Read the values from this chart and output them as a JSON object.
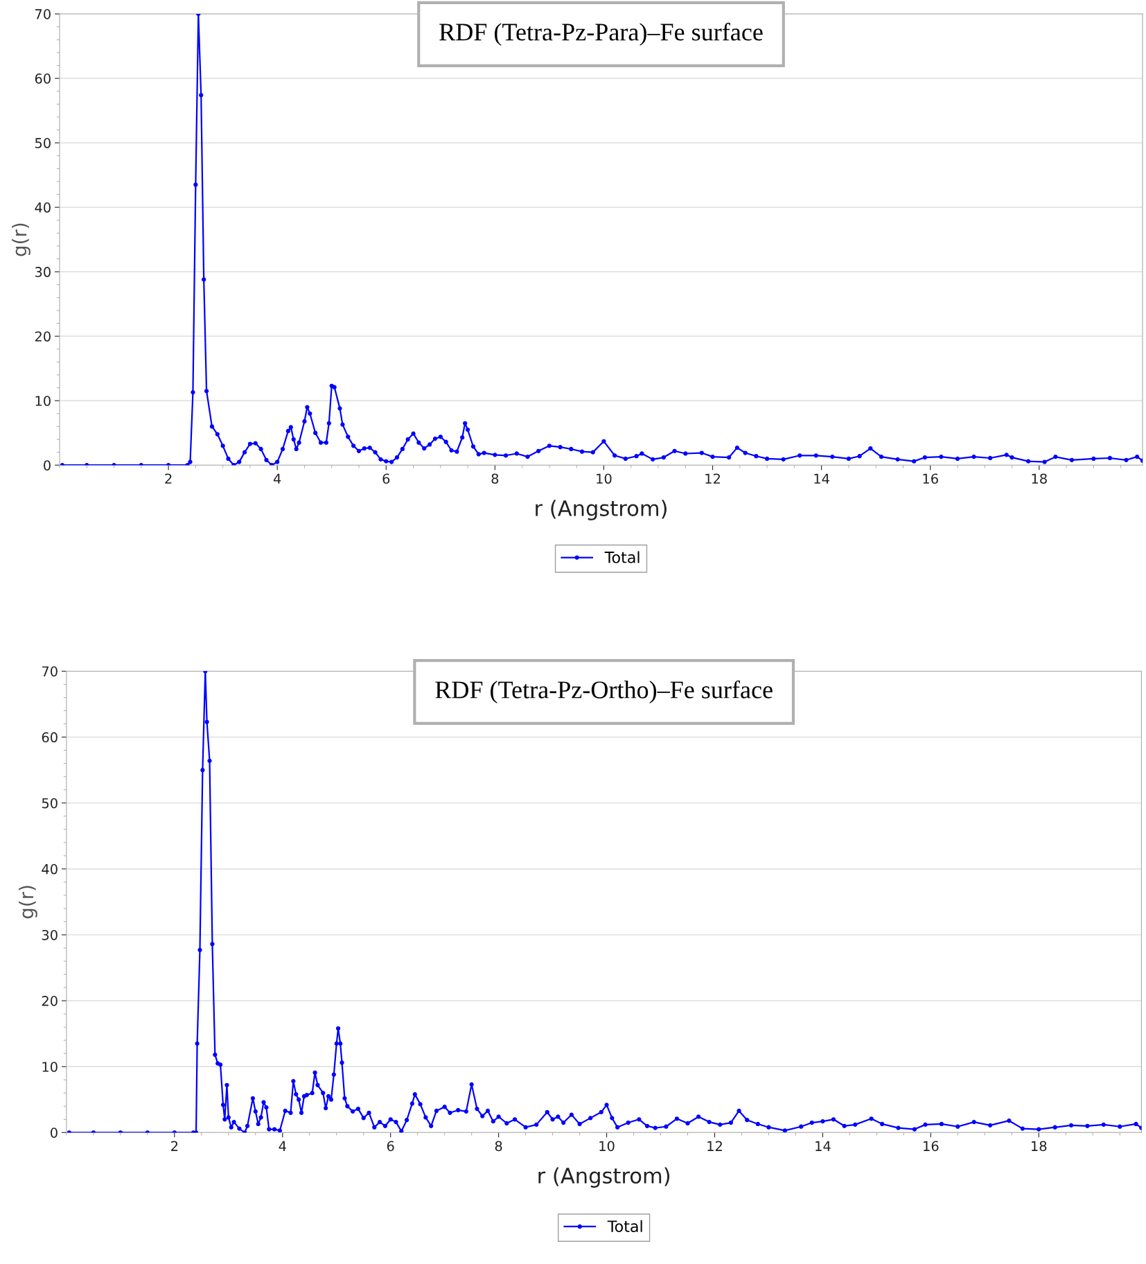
{
  "chart_data": [
    {
      "type": "line",
      "title": "RDF (Tetra-Pz-Para)–Fe surface",
      "xlabel": "r (Angstrom)",
      "ylabel": "g(r)",
      "xlim": [
        0,
        19.9
      ],
      "ylim": [
        0,
        70
      ],
      "xticks": [
        2,
        4,
        6,
        8,
        10,
        12,
        14,
        16,
        18
      ],
      "yticks": [
        0,
        10,
        20,
        30,
        40,
        50,
        60,
        70
      ],
      "grid": "y",
      "legend": "bottom",
      "marker": "circle",
      "line_style": "solid",
      "series": [
        {
          "name": "Total",
          "color": "#0000ff",
          "x": [
            0.05,
            0.5,
            1.0,
            1.5,
            2.0,
            2.35,
            2.4,
            2.45,
            2.5,
            2.55,
            2.6,
            2.65,
            2.7,
            2.8,
            2.9,
            3.0,
            3.1,
            3.2,
            3.3,
            3.4,
            3.5,
            3.6,
            3.7,
            3.8,
            3.9,
            4.0,
            4.1,
            4.2,
            4.25,
            4.3,
            4.35,
            4.4,
            4.5,
            4.55,
            4.6,
            4.7,
            4.8,
            4.9,
            4.95,
            5.0,
            5.05,
            5.15,
            5.2,
            5.3,
            5.4,
            5.5,
            5.6,
            5.7,
            5.8,
            5.9,
            6.0,
            6.1,
            6.2,
            6.3,
            6.4,
            6.5,
            6.6,
            6.7,
            6.8,
            6.9,
            7.0,
            7.1,
            7.2,
            7.3,
            7.4,
            7.45,
            7.5,
            7.6,
            7.7,
            7.8,
            8.0,
            8.2,
            8.4,
            8.6,
            8.8,
            9.0,
            9.2,
            9.4,
            9.6,
            9.8,
            10.0,
            10.2,
            10.4,
            10.6,
            10.7,
            10.9,
            11.1,
            11.3,
            11.5,
            11.8,
            12.0,
            12.3,
            12.45,
            12.6,
            12.8,
            13.0,
            13.3,
            13.6,
            13.9,
            14.2,
            14.5,
            14.7,
            14.9,
            15.1,
            15.4,
            15.7,
            15.9,
            16.2,
            16.5,
            16.8,
            17.1,
            17.4,
            17.5,
            17.8,
            18.1,
            18.3,
            18.6,
            19.0,
            19.3,
            19.6,
            19.8,
            19.9
          ],
          "values": [
            0,
            0,
            0,
            0,
            0,
            0,
            0.5,
            11.3,
            43.5,
            70,
            57.4,
            28.8,
            11.5,
            6,
            4.8,
            3,
            1,
            0,
            0.5,
            2,
            3.3,
            3.4,
            2.5,
            0.8,
            0,
            0.5,
            2.5,
            5.3,
            5.9,
            4,
            2.5,
            3.5,
            6.8,
            9,
            8,
            5,
            3.5,
            3.5,
            6.5,
            12.3,
            12.1,
            8.8,
            6.3,
            4.4,
            3,
            2.2,
            2.6,
            2.7,
            2,
            0.9,
            0.6,
            0.5,
            1.2,
            2.5,
            4,
            4.9,
            3.5,
            2.6,
            3.2,
            4.1,
            4.4,
            3.6,
            2.3,
            2.1,
            4.3,
            6.5,
            5.5,
            2.9,
            1.7,
            1.9,
            1.6,
            1.5,
            1.8,
            1.3,
            2.2,
            3,
            2.8,
            2.5,
            2.1,
            2,
            3.7,
            1.5,
            1,
            1.4,
            1.8,
            0.9,
            1.2,
            2.2,
            1.8,
            1.9,
            1.3,
            1.2,
            2.7,
            1.9,
            1.4,
            1,
            0.9,
            1.5,
            1.5,
            1.3,
            1,
            1.4,
            2.6,
            1.3,
            0.9,
            0.6,
            1.2,
            1.3,
            1,
            1.3,
            1.1,
            1.6,
            1.2,
            0.6,
            0.5,
            1.3,
            0.8,
            1.0,
            1.1,
            0.8,
            1.3,
            0.7
          ]
        }
      ]
    },
    {
      "type": "line",
      "title": "RDF (Tetra-Pz-Ortho)–Fe surface",
      "xlabel": "r (Angstrom)",
      "ylabel": "g(r)",
      "xlim": [
        0,
        19.9
      ],
      "ylim": [
        0,
        70
      ],
      "xticks": [
        2,
        4,
        6,
        8,
        10,
        12,
        14,
        16,
        18
      ],
      "yticks": [
        0,
        10,
        20,
        30,
        40,
        50,
        60,
        70
      ],
      "grid": "y",
      "legend": "bottom",
      "marker": "circle",
      "line_style": "solid",
      "series": [
        {
          "name": "Total",
          "color": "#0000ff",
          "x": [
            0.05,
            0.5,
            1.0,
            1.5,
            2.0,
            2.35,
            2.4,
            2.42,
            2.47,
            2.52,
            2.57,
            2.6,
            2.65,
            2.7,
            2.75,
            2.8,
            2.85,
            2.9,
            2.93,
            2.97,
            3.0,
            3.05,
            3.1,
            3.2,
            3.3,
            3.35,
            3.45,
            3.5,
            3.55,
            3.6,
            3.65,
            3.7,
            3.75,
            3.85,
            3.95,
            4.05,
            4.15,
            4.2,
            4.25,
            4.3,
            4.35,
            4.4,
            4.45,
            4.55,
            4.6,
            4.65,
            4.75,
            4.8,
            4.85,
            4.9,
            4.95,
            5.0,
            5.03,
            5.07,
            5.1,
            5.15,
            5.2,
            5.3,
            5.4,
            5.5,
            5.6,
            5.7,
            5.8,
            5.9,
            6.0,
            6.1,
            6.2,
            6.3,
            6.4,
            6.45,
            6.55,
            6.65,
            6.75,
            6.85,
            7.0,
            7.1,
            7.25,
            7.4,
            7.5,
            7.6,
            7.7,
            7.8,
            7.9,
            8.0,
            8.15,
            8.3,
            8.5,
            8.7,
            8.9,
            9.0,
            9.1,
            9.2,
            9.35,
            9.5,
            9.7,
            9.9,
            10.0,
            10.1,
            10.2,
            10.4,
            10.6,
            10.75,
            10.9,
            11.1,
            11.3,
            11.5,
            11.7,
            11.9,
            12.1,
            12.3,
            12.45,
            12.6,
            12.8,
            13.0,
            13.3,
            13.6,
            13.8,
            14.0,
            14.2,
            14.4,
            14.6,
            14.9,
            15.1,
            15.4,
            15.7,
            15.9,
            16.2,
            16.5,
            16.8,
            17.1,
            17.45,
            17.7,
            18.0,
            18.3,
            18.6,
            18.9,
            19.2,
            19.5,
            19.8,
            19.9
          ],
          "values": [
            0,
            0,
            0,
            0,
            0,
            0,
            0,
            13.5,
            27.7,
            55,
            70,
            62.3,
            56.4,
            28.6,
            11.8,
            10.5,
            10.3,
            4.2,
            2,
            7.2,
            2.3,
            0.8,
            1.6,
            0.6,
            0,
            1,
            5.2,
            3.2,
            1.3,
            2.3,
            4.6,
            3.8,
            0.5,
            0.5,
            0.3,
            3.3,
            3,
            7.8,
            5.8,
            5,
            3,
            5.5,
            5.7,
            6,
            9.1,
            7.2,
            6,
            3.7,
            5.5,
            5,
            8.8,
            13.5,
            15.8,
            13.5,
            10.6,
            5.2,
            4,
            3.2,
            3.6,
            2.2,
            3,
            0.8,
            1.6,
            1,
            2,
            1.6,
            0.2,
            1.9,
            4.4,
            5.8,
            4.3,
            2.3,
            1,
            3.3,
            3.9,
            3,
            3.4,
            3.2,
            7.3,
            3.6,
            2.5,
            3.3,
            1.7,
            2.4,
            1.4,
            2,
            0.8,
            1.2,
            3.1,
            2,
            2.4,
            1.5,
            2.7,
            1.3,
            2.2,
            3.1,
            4.2,
            2.2,
            0.8,
            1.5,
            2,
            1,
            0.7,
            0.9,
            2.1,
            1.4,
            2.4,
            1.6,
            1.2,
            1.5,
            3.3,
            1.9,
            1.3,
            0.8,
            0.3,
            0.9,
            1.5,
            1.7,
            2,
            1,
            1.2,
            2.1,
            1.3,
            0.7,
            0.5,
            1.2,
            1.3,
            0.9,
            1.6,
            1.1,
            1.8,
            0.6,
            0.5,
            0.8,
            1.1,
            1.0,
            1.2,
            0.9,
            1.3,
            0.7
          ]
        }
      ]
    }
  ]
}
